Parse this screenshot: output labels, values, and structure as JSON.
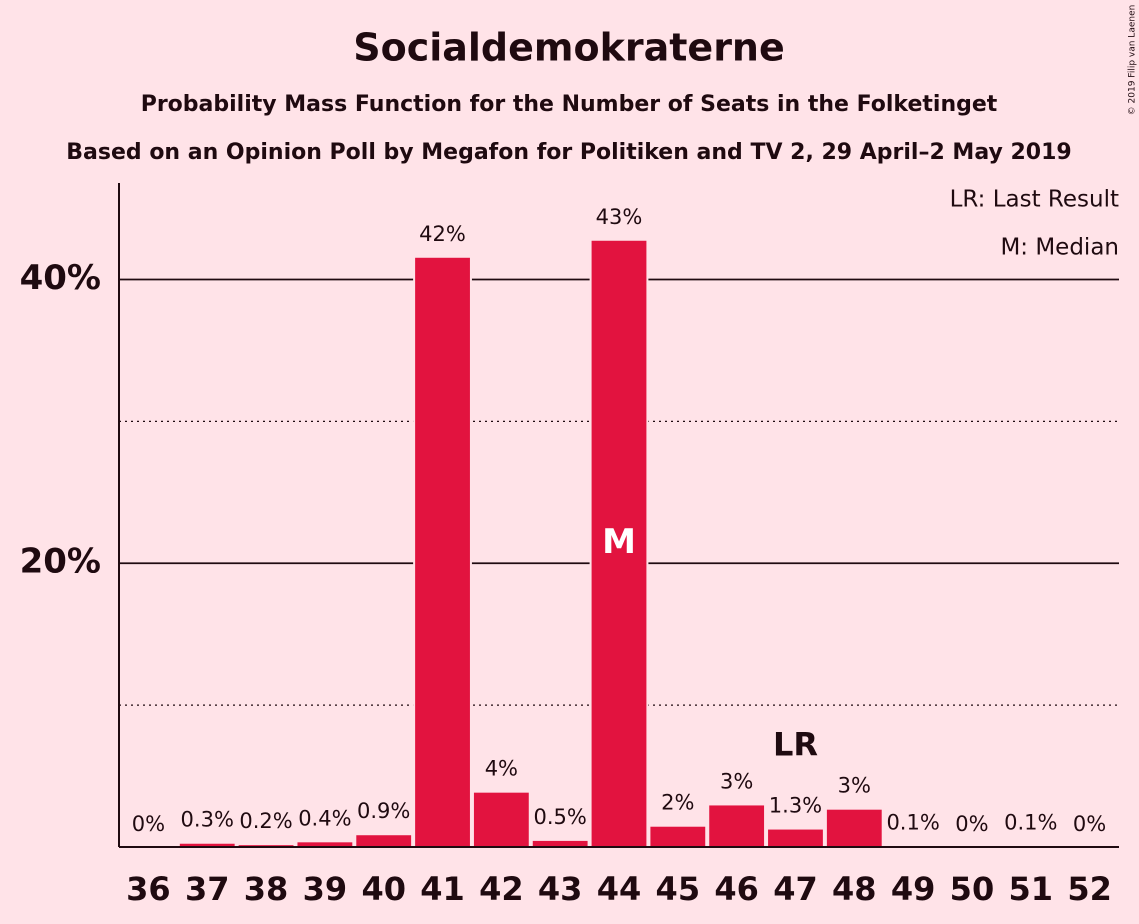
{
  "chart_data": {
    "type": "bar",
    "title": "Socialdemokraterne",
    "subtitle": "Probability Mass Function for the Number of Seats in the Folketinget",
    "subtitle2": "Based on an Opinion Poll by Megafon for Politiken and TV 2, 29 April–2 May 2019",
    "x": [
      36,
      37,
      38,
      39,
      40,
      41,
      42,
      43,
      44,
      45,
      46,
      47,
      48,
      49,
      50,
      51,
      52
    ],
    "values": [
      0,
      0.3,
      0.2,
      0.4,
      0.9,
      41.6,
      3.9,
      0.5,
      42.8,
      1.5,
      3.0,
      1.3,
      2.7,
      0.1,
      0,
      0.1,
      0
    ],
    "value_labels": [
      "0%",
      "0.3%",
      "0.2%",
      "0.4%",
      "0.9%",
      "42%",
      "4%",
      "0.5%",
      "43%",
      "2%",
      "3%",
      "1.3%",
      "3%",
      "0.1%",
      "0%",
      "0.1%",
      "0%"
    ],
    "color": "#e2133f",
    "xlim": [
      35.5,
      52.5
    ],
    "ylim": [
      0,
      46.8
    ],
    "yticks": [
      {
        "value": 20,
        "label": "20%"
      },
      {
        "value": 40,
        "label": "40%"
      }
    ],
    "minor_yticks": [
      10,
      30
    ],
    "grid": true,
    "median": {
      "x": 44,
      "label": "M"
    },
    "last_result": {
      "x": 47,
      "label": "LR"
    },
    "legend": [
      "LR: Last Result",
      "M: Median"
    ],
    "copyright": "© 2019 Filip van Laenen"
  }
}
